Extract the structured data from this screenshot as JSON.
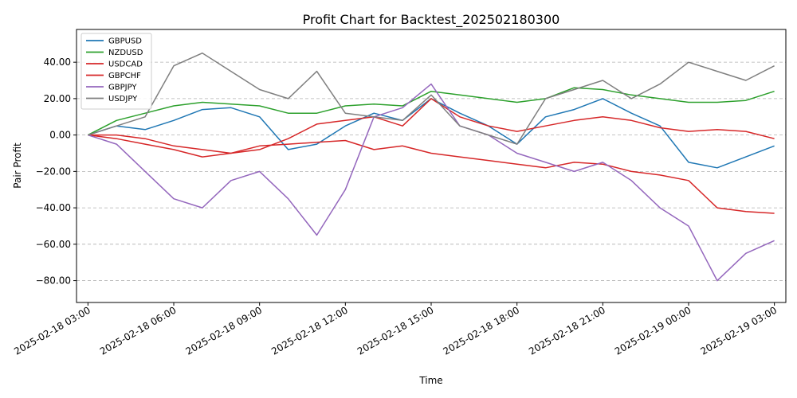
{
  "chart_data": {
    "type": "line",
    "title": "Profit Chart for Backtest_202502180300",
    "xlabel": "Time",
    "ylabel": "Pair Profit",
    "ylim": [
      -92,
      58
    ],
    "grid": "y-dashed",
    "legend_position": "top-left",
    "x_range": [
      "2025-02-18 02:36",
      "2025-02-19 03:24"
    ],
    "x_ticks": [
      "2025-02-18 03:00",
      "2025-02-18 06:00",
      "2025-02-18 09:00",
      "2025-02-18 12:00",
      "2025-02-18 15:00",
      "2025-02-18 18:00",
      "2025-02-18 21:00",
      "2025-02-19 00:00",
      "2025-02-19 03:00"
    ],
    "y_ticks": [
      {
        "value": 40,
        "label": "40.00"
      },
      {
        "value": 20,
        "label": "20.00"
      },
      {
        "value": 0,
        "label": "0.00"
      },
      {
        "value": -20,
        "label": "−20.00"
      },
      {
        "value": -40,
        "label": "−40.00"
      },
      {
        "value": -60,
        "label": "−60.00"
      },
      {
        "value": -80,
        "label": "−80.00"
      }
    ],
    "x": [
      "2025-02-18 03:00",
      "2025-02-18 04:00",
      "2025-02-18 05:00",
      "2025-02-18 06:00",
      "2025-02-18 07:00",
      "2025-02-18 08:00",
      "2025-02-18 09:00",
      "2025-02-18 10:00",
      "2025-02-18 11:00",
      "2025-02-18 12:00",
      "2025-02-18 13:00",
      "2025-02-18 14:00",
      "2025-02-18 15:00",
      "2025-02-18 16:00",
      "2025-02-18 17:00",
      "2025-02-18 18:00",
      "2025-02-18 19:00",
      "2025-02-18 20:00",
      "2025-02-18 21:00",
      "2025-02-18 22:00",
      "2025-02-18 23:00",
      "2025-02-19 00:00",
      "2025-02-19 01:00",
      "2025-02-19 02:00",
      "2025-02-19 03:00"
    ],
    "series": [
      {
        "name": "GBPUSD",
        "color": "#1f77b4",
        "values": [
          0,
          5,
          3,
          8,
          14,
          15,
          10,
          -8,
          -5,
          5,
          12,
          8,
          20,
          12,
          5,
          -5,
          10,
          14,
          20,
          12,
          5,
          -15,
          -18,
          -12,
          -6
        ]
      },
      {
        "name": "NZDUSD",
        "color": "#2ca02c",
        "values": [
          0,
          8,
          12,
          16,
          18,
          17,
          16,
          12,
          12,
          16,
          17,
          16,
          24,
          22,
          20,
          18,
          20,
          26,
          25,
          22,
          20,
          18,
          18,
          19,
          24
        ]
      },
      {
        "name": "USDCAD",
        "color": "#d62728",
        "values": [
          0,
          0,
          -2,
          -6,
          -8,
          -10,
          -8,
          -2,
          6,
          8,
          10,
          5,
          20,
          10,
          5,
          2,
          5,
          8,
          10,
          8,
          4,
          2,
          3,
          2,
          -2
        ]
      },
      {
        "name": "GBPCHF",
        "color": "#d62728",
        "values": [
          0,
          -2,
          -5,
          -8,
          -12,
          -10,
          -6,
          -5,
          -4,
          -3,
          -8,
          -6,
          -10,
          -12,
          -14,
          -16,
          -18,
          -15,
          -16,
          -20,
          -22,
          -25,
          -40,
          -42,
          -43
        ]
      },
      {
        "name": "GBPJPY",
        "color": "#9467bd",
        "values": [
          0,
          -5,
          -20,
          -35,
          -40,
          -25,
          -20,
          -35,
          -55,
          -30,
          10,
          15,
          28,
          5,
          0,
          -10,
          -15,
          -20,
          -15,
          -25,
          -40,
          -50,
          -80,
          -65,
          -58
        ]
      },
      {
        "name": "USDJPY",
        "color": "#7f7f7f",
        "values": [
          0,
          5,
          10,
          38,
          45,
          35,
          25,
          20,
          35,
          12,
          10,
          8,
          22,
          5,
          0,
          -5,
          20,
          25,
          30,
          20,
          28,
          40,
          35,
          30,
          38
        ]
      }
    ]
  }
}
